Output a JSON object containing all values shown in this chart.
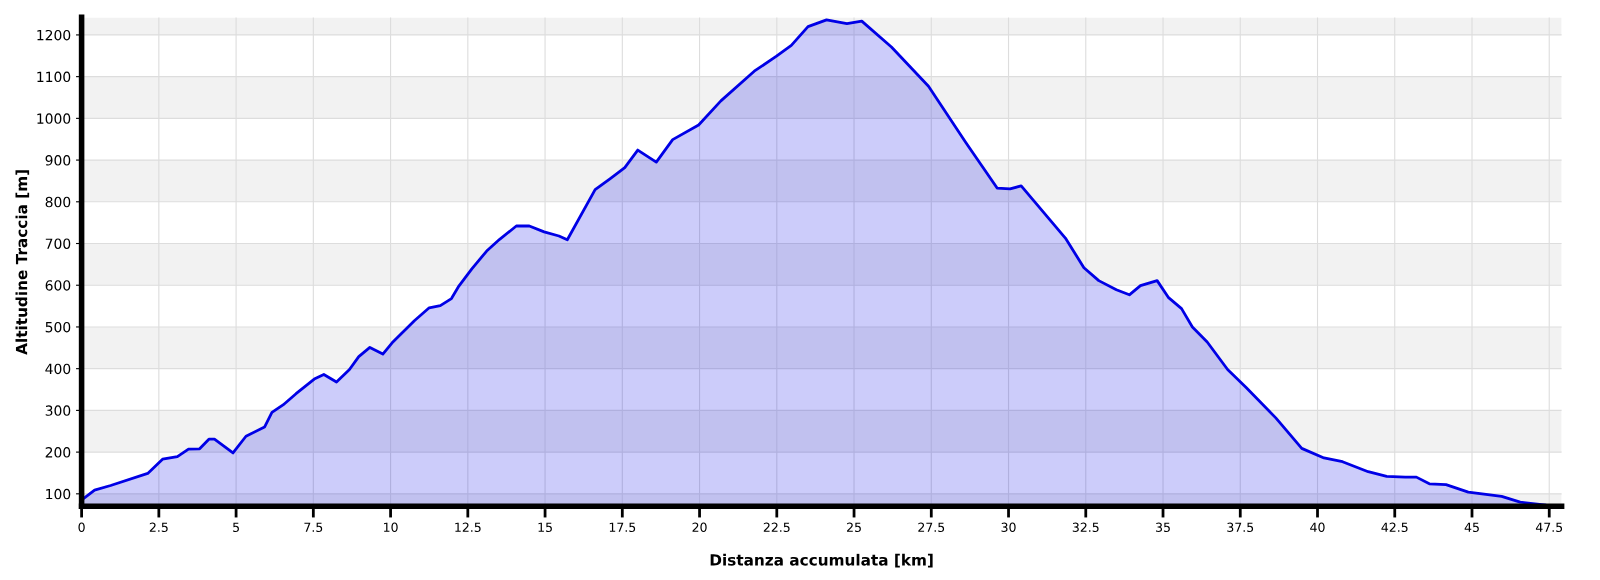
{
  "chart_data": {
    "type": "area",
    "xlabel": "Distanza accumulata [km]",
    "ylabel": "Altitudine Traccia [m]",
    "x": [
      0,
      0.42,
      0.94,
      2.14,
      2.62,
      3.1,
      3.46,
      3.82,
      4.12,
      4.3,
      4.9,
      5.32,
      5.92,
      6.16,
      6.52,
      6.94,
      7.53,
      7.84,
      8.25,
      8.67,
      8.97,
      9.33,
      9.75,
      10.05,
      10.77,
      11.25,
      11.61,
      11.97,
      12.21,
      12.63,
      13.11,
      13.53,
      14.07,
      14.49,
      14.97,
      15.45,
      15.72,
      16.62,
      17.1,
      17.58,
      18.0,
      18.6,
      19.13,
      19.97,
      20.69,
      21.77,
      22.49,
      22.97,
      23.51,
      24.11,
      24.77,
      25.25,
      26.21,
      27.41,
      28.6,
      29.63,
      30.05,
      30.41,
      31.84,
      32.44,
      32.92,
      33.49,
      33.91,
      34.27,
      34.81,
      35.17,
      35.6,
      35.95,
      36.43,
      37.09,
      37.69,
      38.65,
      39.49,
      40.21,
      40.81,
      41.64,
      42.24,
      42.84,
      43.2,
      43.62,
      44.16,
      44.88,
      45.96,
      46.56,
      47.4,
      47.88
    ],
    "series": [
      {
        "color": "#0000e6",
        "values": [
          85,
          109,
          120,
          149,
          183,
          189,
          207,
          208,
          231,
          231,
          198,
          238,
          260,
          295,
          313,
          340,
          375,
          386,
          368,
          398,
          429,
          451,
          435,
          462,
          515,
          546,
          551,
          568,
          598,
          639,
          682,
          710,
          742,
          742,
          728,
          718,
          709,
          829,
          855,
          882,
          924,
          895,
          949,
          984,
          1042,
          1113,
          1149,
          1175,
          1220,
          1236,
          1227,
          1233,
          1171,
          1077,
          944,
          833,
          831,
          838,
          713,
          642,
          611,
          589,
          577,
          599,
          611,
          571,
          544,
          500,
          464,
          398,
          355,
          282,
          209,
          186,
          177,
          153,
          142,
          140,
          140,
          124,
          122,
          104,
          94,
          80,
          73,
          71
        ]
      }
    ],
    "xlim": [
      0,
      47.9
    ],
    "ylim": [
      70,
      1242
    ],
    "xticks": [
      0,
      2.5,
      5,
      7.5,
      10,
      12.5,
      15,
      17.5,
      20,
      22.5,
      25,
      27.5,
      30,
      32.5,
      35,
      37.5,
      40,
      42.5,
      45,
      47.5
    ],
    "yticks": [
      100,
      200,
      300,
      400,
      500,
      600,
      700,
      800,
      900,
      1000,
      1100,
      1200
    ],
    "grid": true,
    "legend": false
  }
}
